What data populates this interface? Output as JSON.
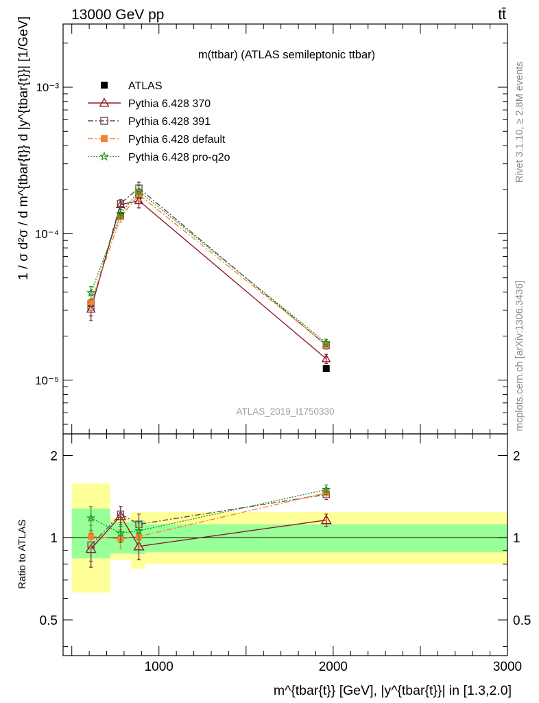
{
  "header": {
    "left": "13000 GeV pp",
    "right": "tt̄"
  },
  "side": {
    "rivet": "Rivet 3.1.10, ≥ 2.8M events",
    "mcplots": "mcplots.cern.ch [arXiv:1306.3436]"
  },
  "chart_data": [
    {
      "type": "line",
      "title": "m(ttbar) (ATLAS semileptonic ttbar)",
      "watermark": "ATLAS_2019_I1750330",
      "ylabel": "1 / σ d²σ / d m^{tbar{t}} d |y^{tbar{t}}| [1/GeV]",
      "yscale": "log",
      "xlim": [
        450,
        3000
      ],
      "ylim": [
        4.3e-06,
        0.0027
      ],
      "ytick_labels": [
        {
          "value": 1e-05,
          "label": "10⁻⁵"
        },
        {
          "value": 0.0001,
          "label": "10⁻⁴"
        },
        {
          "value": 0.001,
          "label": "10⁻³"
        }
      ],
      "legend_position": "top-left",
      "series": [
        {
          "name": "ATLAS",
          "color": "#000000",
          "marker": "filled-square",
          "x": [
            610,
            780,
            885,
            1960
          ],
          "y": [
            3.35e-05,
            0.000132,
            0.000183,
            1.2e-05
          ]
        },
        {
          "name": "Pythia 6.428 370",
          "color": "#8b1a2b",
          "marker": "open-triangle",
          "line": "solid",
          "x": [
            610,
            780,
            885,
            1960
          ],
          "y": [
            3.05e-05,
            0.000158,
            0.000168,
            1.4e-05
          ],
          "err": [
            5e-06,
            1.2e-05,
            1.8e-05,
            1e-06
          ]
        },
        {
          "name": "Pythia 6.428 391",
          "color": "#6b4452",
          "marker": "open-square",
          "line": "dashdot",
          "x": [
            610,
            780,
            885,
            1960
          ],
          "y": [
            3.15e-05,
            0.000161,
            0.000205,
            1.73e-05
          ],
          "err": [
            4e-06,
            1e-05,
            2e-05,
            1e-06
          ]
        },
        {
          "name": "Pythia 6.428 default",
          "color": "#f58231",
          "marker": "filled-square",
          "line": "dashdot",
          "x": [
            610,
            780,
            885,
            1960
          ],
          "y": [
            3.4e-05,
            0.00013,
            0.000185,
            1.75e-05
          ],
          "err": [
            4e-06,
            1e-05,
            1.8e-05,
            1e-06
          ]
        },
        {
          "name": "Pythia 6.428 pro-q2o",
          "color": "#1f8f1f",
          "marker": "star",
          "line": "dotted",
          "x": [
            610,
            780,
            885,
            1960
          ],
          "y": [
            3.95e-05,
            0.000137,
            0.000195,
            1.8e-05
          ],
          "err": [
            4e-06,
            1e-05,
            1.8e-05,
            1e-06
          ]
        }
      ]
    },
    {
      "type": "line",
      "ylabel": "Ratio to ATLAS",
      "xlabel": "m^{tbar{t}} [GeV], |y^{tbar{t}}| in [1.3,2.0]",
      "xlim": [
        450,
        3000
      ],
      "ylim": [
        0.37,
        2.4
      ],
      "yscale": "log",
      "xtick_labels": [
        {
          "value": 1000,
          "label": "1000"
        },
        {
          "value": 2000,
          "label": "2000"
        },
        {
          "value": 3000,
          "label": "3000"
        }
      ],
      "ytick_labels": [
        {
          "value": 0.5,
          "label": "0.5"
        },
        {
          "value": 1,
          "label": "1"
        },
        {
          "value": 2,
          "label": "2"
        }
      ],
      "bands": [
        {
          "x": [
            500,
            720
          ],
          "inner": [
            0.84,
            1.28
          ],
          "outer": [
            0.63,
            1.58
          ]
        },
        {
          "x": [
            720,
            840
          ],
          "inner": [
            0.875,
            1.14
          ],
          "outer": [
            0.83,
            1.18
          ]
        },
        {
          "x": [
            840,
            920
          ],
          "inner": [
            0.87,
            1.16
          ],
          "outer": [
            0.77,
            1.24
          ]
        },
        {
          "x": [
            920,
            3000
          ],
          "inner": [
            0.885,
            1.12
          ],
          "outer": [
            0.8,
            1.24
          ]
        }
      ],
      "band_colors": {
        "inner": "#99ff99",
        "outer": "#ffff99"
      },
      "series": [
        {
          "name": "Pythia 6.428 370",
          "color": "#8b1a2b",
          "marker": "open-triangle",
          "line": "solid",
          "x": [
            610,
            780,
            885,
            1960
          ],
          "y": [
            0.91,
            1.2,
            0.93,
            1.16
          ],
          "err": [
            0.13,
            0.1,
            0.1,
            0.06
          ]
        },
        {
          "name": "Pythia 6.428 391",
          "color": "#6b4452",
          "marker": "open-square",
          "line": "dashdot",
          "x": [
            610,
            780,
            885,
            1960
          ],
          "y": [
            0.94,
            1.22,
            1.12,
            1.44
          ],
          "err": [
            0.12,
            0.08,
            0.1,
            0.06
          ]
        },
        {
          "name": "Pythia 6.428 default",
          "color": "#f58231",
          "marker": "filled-square",
          "line": "dashdot",
          "x": [
            610,
            780,
            885,
            1960
          ],
          "y": [
            1.01,
            0.99,
            1.01,
            1.46
          ],
          "err": [
            0.1,
            0.08,
            0.08,
            0.06
          ]
        },
        {
          "name": "Pythia 6.428 pro-q2o",
          "color": "#1f8f1f",
          "marker": "star",
          "line": "dotted",
          "x": [
            610,
            780,
            885,
            1960
          ],
          "y": [
            1.18,
            1.04,
            1.06,
            1.5
          ],
          "err": [
            0.12,
            0.08,
            0.08,
            0.06
          ]
        }
      ]
    }
  ]
}
